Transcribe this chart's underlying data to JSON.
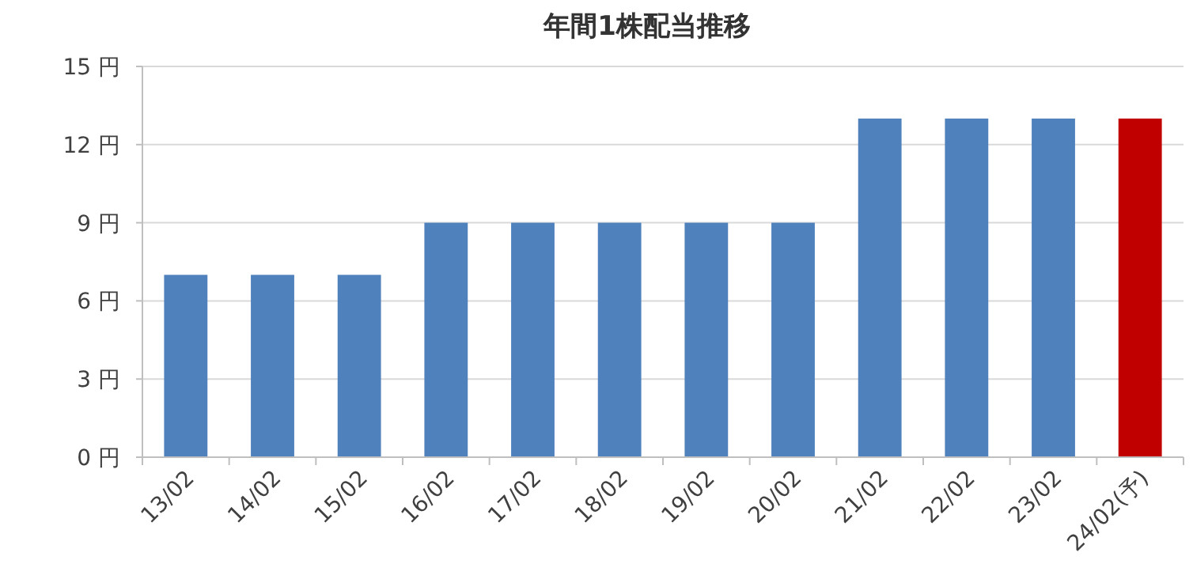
{
  "chart_data": {
    "type": "bar",
    "title": "年間1株配当推移",
    "categories": [
      "13/02",
      "14/02",
      "15/02",
      "16/02",
      "17/02",
      "18/02",
      "19/02",
      "20/02",
      "21/02",
      "22/02",
      "23/02",
      "24/02(予)"
    ],
    "values": [
      7,
      7,
      7,
      9,
      9,
      9,
      9,
      9,
      13,
      13,
      13,
      13
    ],
    "colors": [
      "#4f81bd",
      "#4f81bd",
      "#4f81bd",
      "#4f81bd",
      "#4f81bd",
      "#4f81bd",
      "#4f81bd",
      "#4f81bd",
      "#4f81bd",
      "#4f81bd",
      "#4f81bd",
      "#c00000"
    ],
    "ylim": [
      0,
      15
    ],
    "yticks": [
      {
        "value": 0,
        "label": "0 円"
      },
      {
        "value": 3,
        "label": "3 円"
      },
      {
        "value": 6,
        "label": "6 円"
      },
      {
        "value": 9,
        "label": "9 円"
      },
      {
        "value": 12,
        "label": "12 円"
      },
      {
        "value": 15,
        "label": "15 円"
      }
    ],
    "grid": "y"
  }
}
